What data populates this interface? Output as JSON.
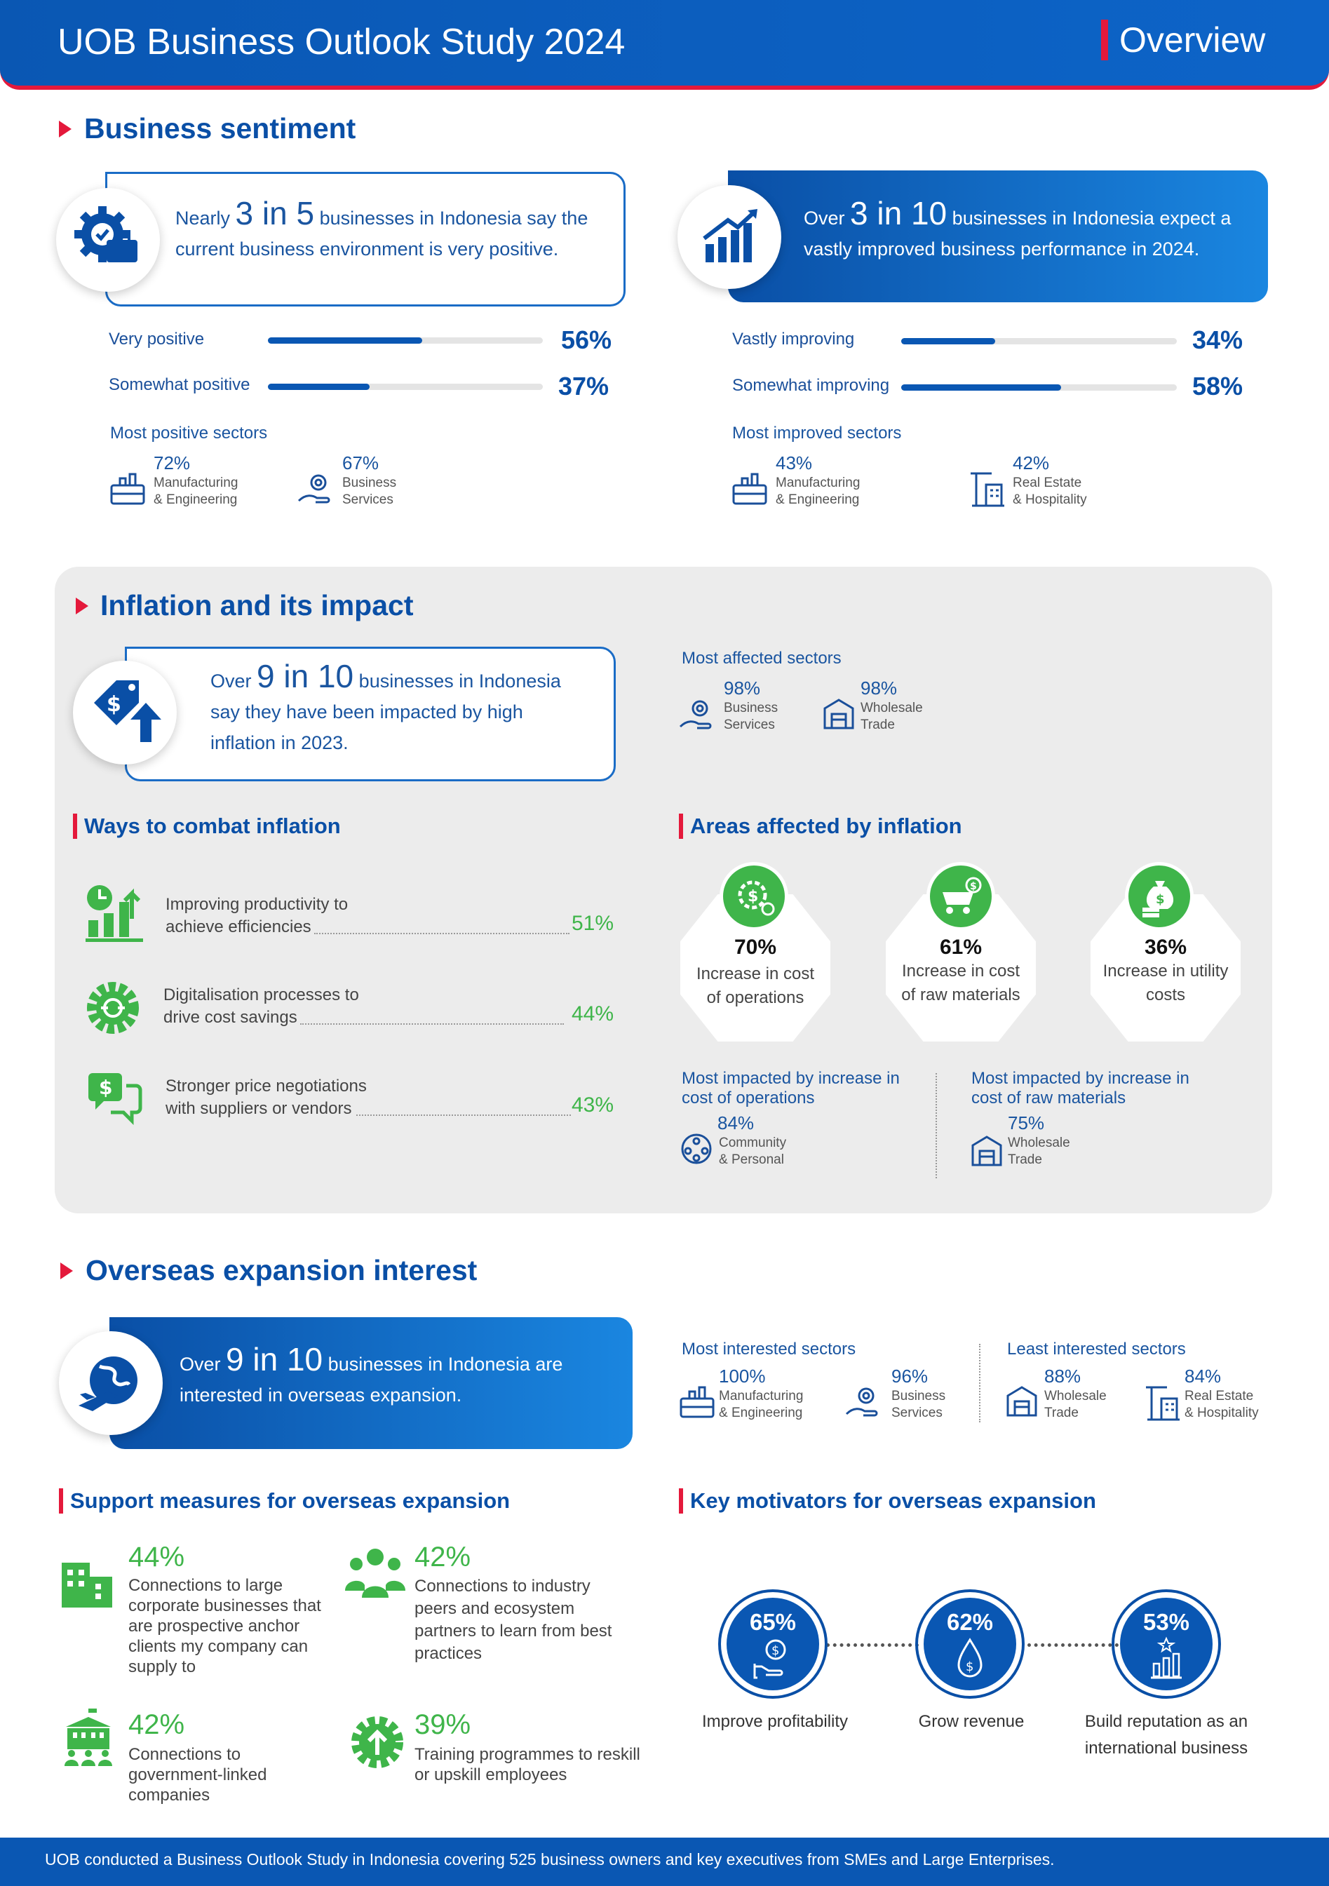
{
  "header": {
    "title": "UOB Business Outlook Study 2024",
    "section": "Overview"
  },
  "sentiment": {
    "title": "Business sentiment",
    "left_card": {
      "pre": "Nearly",
      "big": "3 in 5",
      "post": "businesses in Indonesia say the",
      "line2": "current business environment is very positive."
    },
    "right_card": {
      "pre": "Over",
      "big": "3 in 10",
      "post": "businesses in Indonesia expect a",
      "line2": "vastly improved business performance in 2024."
    },
    "left_bars": [
      {
        "label": "Very positive",
        "value": 56,
        "pct": "56%"
      },
      {
        "label": "Somewhat positive",
        "value": 37,
        "pct": "37%"
      }
    ],
    "right_bars": [
      {
        "label": "Vastly improving",
        "value": 34,
        "pct": "34%"
      },
      {
        "label": "Somewhat improving",
        "value": 58,
        "pct": "58%"
      }
    ],
    "left_sectors": {
      "heading": "Most positive sectors",
      "items": [
        {
          "pct": "72%",
          "l1": "Manufacturing",
          "l2": "& Engineering"
        },
        {
          "pct": "67%",
          "l1": "Business",
          "l2": "Services"
        }
      ]
    },
    "right_sectors": {
      "heading": "Most improved sectors",
      "items": [
        {
          "pct": "43%",
          "l1": "Manufacturing",
          "l2": "& Engineering"
        },
        {
          "pct": "42%",
          "l1": "Real Estate",
          "l2": "& Hospitality"
        }
      ]
    }
  },
  "inflation": {
    "title": "Inflation and its impact",
    "card": {
      "pre": "Over",
      "big": "9 in 10",
      "post": "businesses in Indonesia",
      "line2": "say they have been impacted by high",
      "line3": "inflation in 2023."
    },
    "affected": {
      "heading": "Most affected sectors",
      "items": [
        {
          "pct": "98%",
          "l1": "Business",
          "l2": "Services"
        },
        {
          "pct": "98%",
          "l1": "Wholesale",
          "l2": "Trade"
        }
      ]
    },
    "combat": {
      "title": "Ways to combat inflation",
      "items": [
        {
          "l1": "Improving productivity to",
          "l2": "achieve efficiencies",
          "pct": "51%"
        },
        {
          "l1": "Digitalisation processes to",
          "l2": "drive cost savings",
          "pct": "44%"
        },
        {
          "l1": "Stronger price negotiations",
          "l2": "with suppliers or vendors",
          "pct": "43%"
        }
      ]
    },
    "areas": {
      "title": "Areas affected by inflation",
      "items": [
        {
          "pct": "70%",
          "l1": "Increase in cost",
          "l2": "of operations"
        },
        {
          "pct": "61%",
          "l1": "Increase in cost",
          "l2": "of raw materials"
        },
        {
          "pct": "36%",
          "l1": "Increase in utility",
          "l2": "costs"
        }
      ]
    },
    "impact_ops": {
      "h1": "Most impacted by increase in",
      "h2": "cost of operations",
      "pct": "84%",
      "l1": "Community",
      "l2": "& Personal"
    },
    "impact_raw": {
      "h1": "Most impacted by increase in",
      "h2": "cost of raw materials",
      "pct": "75%",
      "l1": "Wholesale",
      "l2": "Trade"
    }
  },
  "overseas": {
    "title": "Overseas expansion interest",
    "card": {
      "pre": "Over",
      "big": "9 in 10",
      "post": "businesses in Indonesia are",
      "line2": "interested in overseas expansion."
    },
    "most": {
      "heading": "Most interested sectors",
      "items": [
        {
          "pct": "100%",
          "l1": "Manufacturing",
          "l2": "& Engineering"
        },
        {
          "pct": "96%",
          "l1": "Business",
          "l2": "Services"
        }
      ]
    },
    "least": {
      "heading": "Least interested sectors",
      "items": [
        {
          "pct": "88%",
          "l1": "Wholesale",
          "l2": "Trade"
        },
        {
          "pct": "84%",
          "l1": "Real Estate",
          "l2": "& Hospitality"
        }
      ]
    },
    "support": {
      "title": "Support measures for overseas expansion",
      "items": [
        {
          "pct": "44%",
          "text": "Connections to large corporate businesses that are prospective anchor clients my company can supply to"
        },
        {
          "pct": "42%",
          "text": "Connections to industry peers and ecosystem partners to learn from best practices"
        },
        {
          "pct": "42%",
          "text": "Connections to government-linked companies"
        },
        {
          "pct": "39%",
          "text": "Training programmes to reskill or upskill employees"
        }
      ]
    },
    "motivators": {
      "title": "Key motivators for overseas expansion",
      "items": [
        {
          "pct": "65%",
          "label": "Improve profitability"
        },
        {
          "pct": "62%",
          "label": "Grow revenue"
        },
        {
          "pct": "53%",
          "l1": "Build reputation as an",
          "l2": "international business"
        }
      ]
    }
  },
  "footer": {
    "text": "UOB conducted a Business Outlook Study in Indonesia covering 525 business owners and key executives from SMEs and Large Enterprises."
  },
  "colors": {
    "primary": "#0a57b3",
    "accent": "#e4193b",
    "green": "#3fb54a"
  }
}
